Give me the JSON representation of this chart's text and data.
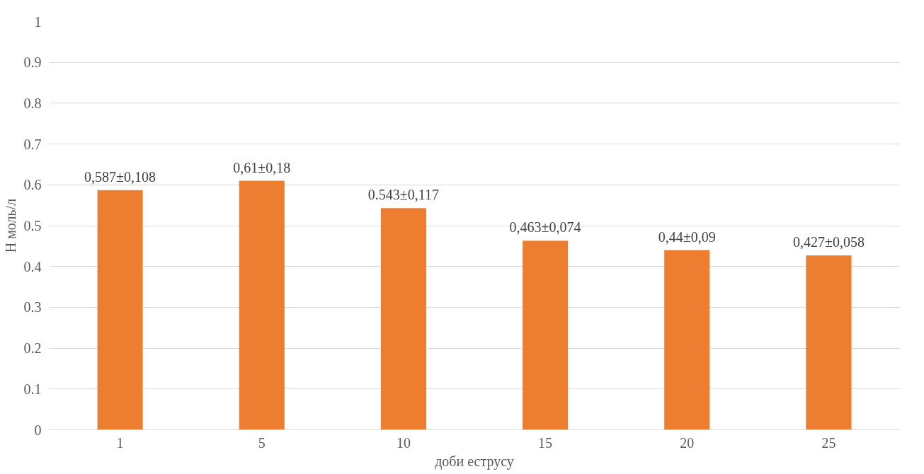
{
  "chart_data": {
    "type": "bar",
    "xlabel": "доби еструсу",
    "ylabel": "Н моль/л",
    "categories": [
      "1",
      "5",
      "10",
      "15",
      "20",
      "25"
    ],
    "values": [
      0.587,
      0.61,
      0.543,
      0.463,
      0.44,
      0.427
    ],
    "value_labels": [
      "0,587±0,108",
      "0,61±0,18",
      "0.543±0,117",
      "0,463±0,074",
      "0,44±0,09",
      "0,427±0,058"
    ],
    "color": "#ed7d31",
    "ylim": [
      0,
      1
    ],
    "yticks": [
      0,
      0.1,
      0.2,
      0.3,
      0.4,
      0.5,
      0.6,
      0.7,
      0.8,
      0.9,
      1
    ],
    "grid": "y"
  }
}
